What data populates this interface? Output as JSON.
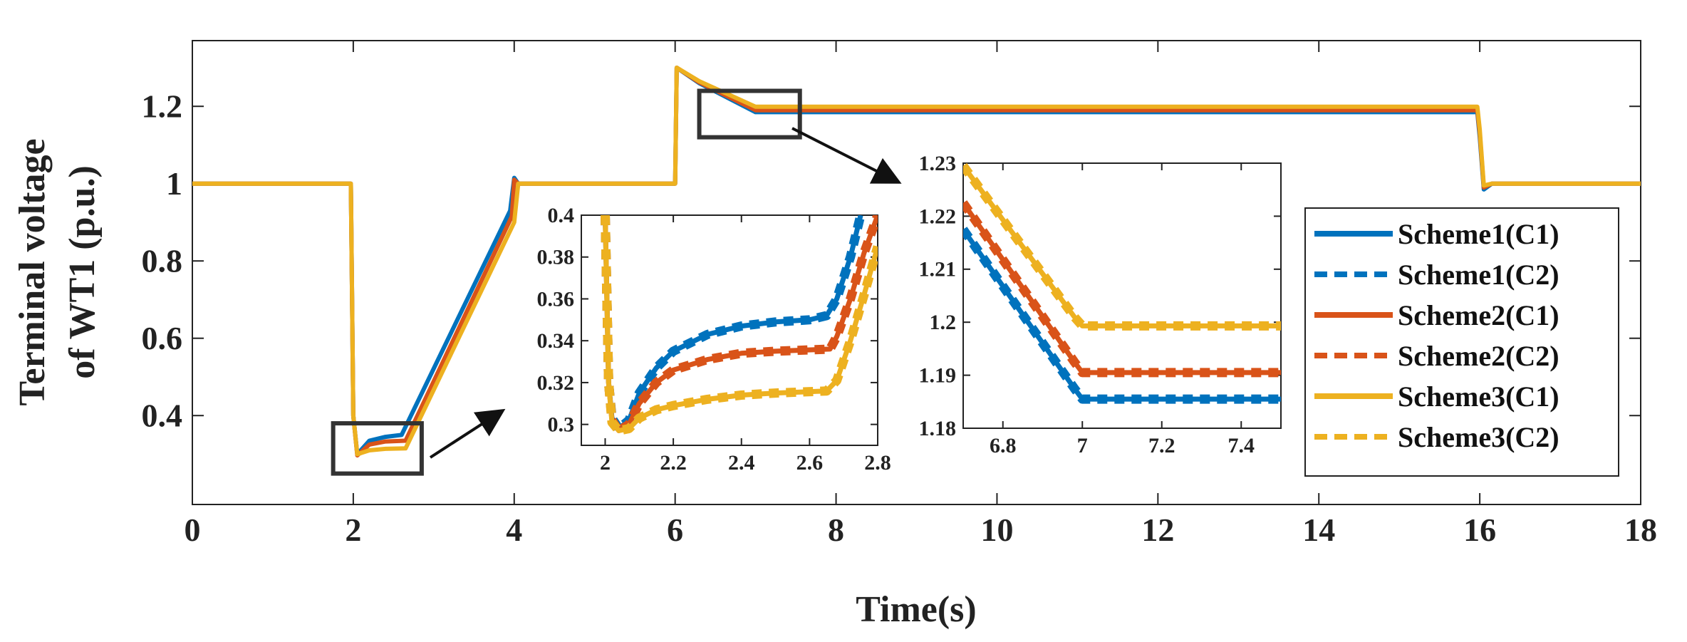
{
  "chart_data": [
    {
      "type": "line",
      "role": "main",
      "title": "",
      "xlabel": "Time(s)",
      "ylabel_lines": [
        "Terminal voltage",
        "of WT1 (p.u.)"
      ],
      "xlim": [
        0,
        18
      ],
      "ylim": [
        0.17,
        1.37
      ],
      "xticks": [
        0,
        2,
        4,
        6,
        8,
        10,
        12,
        14,
        16,
        18
      ],
      "yticks": [
        0.4,
        0.6,
        0.8,
        1,
        1.2
      ],
      "xtick_labels": [
        "0",
        "2",
        "4",
        "6",
        "8",
        "10",
        "12",
        "14",
        "16",
        "18"
      ],
      "ytick_labels": [
        "0.4",
        "0.6",
        "0.8",
        "1",
        "1.2"
      ],
      "series": [
        {
          "name": "Scheme1(C1)",
          "color": "#0072BD",
          "dash": false,
          "x": [
            0,
            1.97,
            2.0,
            2.05,
            2.2,
            2.4,
            2.6,
            3.95,
            4.0,
            4.05,
            4.1,
            6.0,
            6.02,
            6.3,
            7.0,
            15.97,
            16.0,
            16.05,
            16.15,
            18
          ],
          "y": [
            1.0,
            1.0,
            0.4,
            0.3,
            0.335,
            0.345,
            0.35,
            0.93,
            1.015,
            1.0,
            1.0,
            1.0,
            1.3,
            1.26,
            1.185,
            1.185,
            1.12,
            0.985,
            1.0,
            1.0
          ]
        },
        {
          "name": "Scheme1(C2)",
          "color": "#0072BD",
          "dash": true,
          "x": [
            0,
            1.97,
            2.0,
            2.05,
            2.2,
            2.4,
            2.6,
            3.95,
            4.0,
            4.05,
            4.1,
            6.0,
            6.02,
            6.3,
            7.0,
            15.97,
            16.0,
            16.05,
            16.15,
            18
          ],
          "y": [
            1.0,
            1.0,
            0.4,
            0.3,
            0.335,
            0.345,
            0.35,
            0.93,
            1.015,
            1.0,
            1.0,
            1.0,
            1.3,
            1.26,
            1.185,
            1.185,
            1.12,
            0.985,
            1.0,
            1.0
          ]
        },
        {
          "name": "Scheme2(C1)",
          "color": "#D95319",
          "dash": false,
          "x": [
            0,
            1.97,
            2.0,
            2.05,
            2.2,
            2.4,
            2.65,
            3.97,
            4.0,
            4.05,
            4.1,
            6.0,
            6.02,
            6.3,
            7.0,
            15.97,
            16.0,
            16.05,
            16.15,
            18
          ],
          "y": [
            1.0,
            1.0,
            0.4,
            0.297,
            0.325,
            0.333,
            0.335,
            0.915,
            1.01,
            1.0,
            1.0,
            1.0,
            1.3,
            1.262,
            1.19,
            1.19,
            1.13,
            0.99,
            1.0,
            1.0
          ]
        },
        {
          "name": "Scheme2(C2)",
          "color": "#D95319",
          "dash": true,
          "x": [
            0,
            1.97,
            2.0,
            2.05,
            2.2,
            2.4,
            2.65,
            3.97,
            4.0,
            4.05,
            4.1,
            6.0,
            6.02,
            6.3,
            7.0,
            15.97,
            16.0,
            16.05,
            16.15,
            18
          ],
          "y": [
            1.0,
            1.0,
            0.4,
            0.297,
            0.325,
            0.333,
            0.335,
            0.915,
            1.01,
            1.0,
            1.0,
            1.0,
            1.3,
            1.262,
            1.19,
            1.19,
            1.13,
            0.99,
            1.0,
            1.0
          ]
        },
        {
          "name": "Scheme3(C1)",
          "color": "#EDB120",
          "dash": false,
          "x": [
            0,
            1.97,
            2.0,
            2.05,
            2.2,
            2.4,
            2.65,
            4.0,
            4.05,
            4.1,
            6.0,
            6.02,
            6.3,
            7.0,
            15.97,
            16.0,
            16.05,
            16.15,
            18
          ],
          "y": [
            1.0,
            1.0,
            0.4,
            0.3,
            0.31,
            0.314,
            0.315,
            0.9,
            1.0,
            1.0,
            1.0,
            1.3,
            1.265,
            1.199,
            1.199,
            1.14,
            0.995,
            1.0,
            1.0
          ]
        },
        {
          "name": "Scheme3(C2)",
          "color": "#EDB120",
          "dash": true,
          "x": [
            0,
            1.97,
            2.0,
            2.05,
            2.2,
            2.4,
            2.65,
            4.0,
            4.05,
            4.1,
            6.0,
            6.02,
            6.3,
            7.0,
            15.97,
            16.0,
            16.05,
            16.15,
            18
          ],
          "y": [
            1.0,
            1.0,
            0.4,
            0.3,
            0.31,
            0.314,
            0.315,
            0.9,
            1.0,
            1.0,
            1.0,
            1.3,
            1.265,
            1.199,
            1.199,
            1.14,
            0.995,
            1.0,
            1.0
          ]
        }
      ],
      "zoom_boxes": [
        {
          "target": "inset-left",
          "xrange": [
            1.75,
            2.85
          ],
          "yrange": [
            0.25,
            0.38
          ]
        },
        {
          "target": "inset-right",
          "xrange": [
            6.3,
            7.55
          ],
          "yrange": [
            1.12,
            1.24
          ]
        }
      ],
      "legend": {
        "position": "bottom-right inside",
        "entries": [
          "Scheme1(C1)",
          "Scheme1(C2)",
          "Scheme2(C1)",
          "Scheme2(C2)",
          "Scheme3(C1)",
          "Scheme3(C2)"
        ]
      }
    },
    {
      "type": "line",
      "role": "inset-left",
      "xlim": [
        1.93,
        2.8
      ],
      "ylim": [
        0.29,
        0.4
      ],
      "xticks": [
        2,
        2.2,
        2.4,
        2.6,
        2.8
      ],
      "yticks": [
        0.3,
        0.32,
        0.34,
        0.36,
        0.38,
        0.4
      ],
      "xtick_labels": [
        "2",
        "2.2",
        "2.4",
        "2.6",
        "2.8"
      ],
      "ytick_labels": [
        "0.3",
        "0.32",
        "0.34",
        "0.36",
        "0.38",
        "0.4"
      ],
      "series": [
        {
          "name": "Scheme1",
          "color": "#0072BD",
          "x": [
            2.0,
            2.005,
            2.01,
            2.02,
            2.04,
            2.07,
            2.1,
            2.15,
            2.2,
            2.3,
            2.4,
            2.5,
            2.6,
            2.65,
            2.68,
            2.72,
            2.75
          ],
          "y": [
            0.4,
            0.36,
            0.32,
            0.303,
            0.298,
            0.302,
            0.315,
            0.327,
            0.335,
            0.343,
            0.347,
            0.349,
            0.35,
            0.352,
            0.36,
            0.38,
            0.4
          ]
        },
        {
          "name": "Scheme2",
          "color": "#D95319",
          "x": [
            2.0,
            2.005,
            2.01,
            2.02,
            2.04,
            2.07,
            2.1,
            2.15,
            2.2,
            2.3,
            2.4,
            2.5,
            2.66,
            2.68,
            2.72,
            2.76,
            2.8
          ],
          "y": [
            0.4,
            0.36,
            0.32,
            0.302,
            0.297,
            0.3,
            0.31,
            0.32,
            0.326,
            0.331,
            0.334,
            0.335,
            0.336,
            0.342,
            0.36,
            0.382,
            0.4
          ]
        },
        {
          "name": "Scheme3",
          "color": "#EDB120",
          "x": [
            2.0,
            2.005,
            2.01,
            2.02,
            2.04,
            2.07,
            2.1,
            2.15,
            2.2,
            2.3,
            2.4,
            2.5,
            2.65,
            2.68,
            2.72,
            2.76,
            2.8
          ],
          "y": [
            0.4,
            0.36,
            0.32,
            0.301,
            0.297,
            0.298,
            0.303,
            0.307,
            0.309,
            0.312,
            0.314,
            0.315,
            0.316,
            0.321,
            0.34,
            0.362,
            0.385
          ]
        }
      ]
    },
    {
      "type": "line",
      "role": "inset-right",
      "xlim": [
        6.7,
        7.5
      ],
      "ylim": [
        1.18,
        1.23
      ],
      "xticks": [
        6.8,
        7,
        7.2,
        7.4
      ],
      "yticks": [
        1.18,
        1.19,
        1.2,
        1.21,
        1.22,
        1.23
      ],
      "xtick_labels": [
        "6.8",
        "7",
        "7.2",
        "7.4"
      ],
      "ytick_labels": [
        "1.18",
        "1.19",
        "1.2",
        "1.21",
        "1.22",
        "1.23"
      ],
      "series": [
        {
          "name": "Scheme1",
          "color": "#0072BD",
          "x": [
            6.7,
            6.98,
            7.0,
            7.5
          ],
          "y": [
            1.2175,
            1.1875,
            1.1855,
            1.1855
          ]
        },
        {
          "name": "Scheme2",
          "color": "#D95319",
          "x": [
            6.7,
            6.98,
            7.0,
            7.5
          ],
          "y": [
            1.2225,
            1.1925,
            1.1905,
            1.1905
          ]
        },
        {
          "name": "Scheme3",
          "color": "#EDB120",
          "x": [
            6.7,
            6.98,
            7.0,
            7.5
          ],
          "y": [
            1.2295,
            1.201,
            1.1993,
            1.1993
          ]
        }
      ]
    }
  ]
}
